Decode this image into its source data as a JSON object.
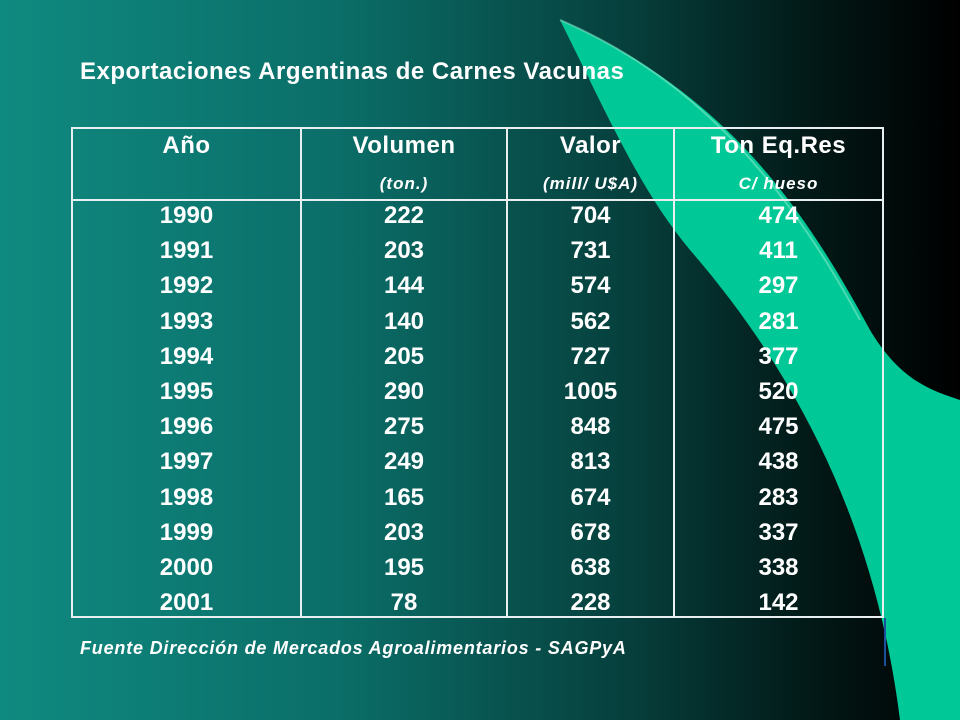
{
  "title": "Exportaciones Argentinas de Carnes Vacunas",
  "source": "Fuente Dirección de Mercados Agroalimentarios - SAGPyA",
  "colors": {
    "accent": "#00c896",
    "grid_line": "#e9eef0",
    "text": "#ffffff"
  },
  "chart_data": {
    "type": "table",
    "title": "Exportaciones Argentinas de Carnes Vacunas",
    "columns": [
      {
        "header": "Año",
        "unit": ""
      },
      {
        "header": "Volumen",
        "unit": "(ton.)"
      },
      {
        "header": "Valor",
        "unit": "(mill/ U$A)"
      },
      {
        "header": "Ton Eq.Res",
        "unit": "C/ hueso"
      }
    ],
    "rows": [
      [
        "1990",
        "222",
        "704",
        "474"
      ],
      [
        "1991",
        "203",
        "731",
        "411"
      ],
      [
        "1992",
        "144",
        "574",
        "297"
      ],
      [
        "1993",
        "140",
        "562",
        "281"
      ],
      [
        "1994",
        "205",
        "727",
        "377"
      ],
      [
        "1995",
        "290",
        "1005",
        "520"
      ],
      [
        "1996",
        "275",
        "848",
        "475"
      ],
      [
        "1997",
        "249",
        "813",
        "438"
      ],
      [
        "1998",
        "165",
        "674",
        "283"
      ],
      [
        "1999",
        "203",
        "678",
        "337"
      ],
      [
        "2000",
        "195",
        "638",
        "338"
      ],
      [
        "2001",
        "78",
        "228",
        "142"
      ]
    ]
  }
}
